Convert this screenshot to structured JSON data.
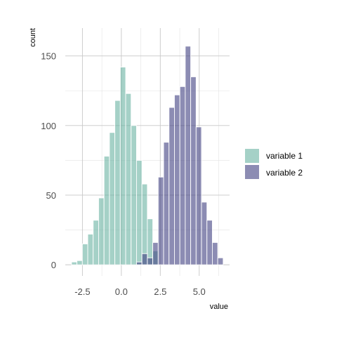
{
  "chart_data": {
    "type": "histogram",
    "title": "",
    "xlabel": "value",
    "ylabel": "count",
    "xlim": [
      -3.6,
      6.95
    ],
    "ylim": [
      -8,
      170
    ],
    "x_ticks": [
      -2.5,
      0.0,
      2.5,
      5.0
    ],
    "x_tick_labels": [
      "-2.5",
      "0.0",
      "2.5",
      "5.0"
    ],
    "y_ticks": [
      0,
      50,
      100,
      150
    ],
    "y_tick_labels": [
      "0",
      "50",
      "100",
      "150"
    ],
    "grid": true,
    "legend_position": "right",
    "bin_width": 0.3478,
    "series": [
      {
        "name": "variable 1",
        "color": "#69b3a2",
        "bins_start": [
          -3.2,
          -2.852,
          -2.504,
          -2.157,
          -1.809,
          -1.461,
          -1.113,
          -0.765,
          -0.417,
          -0.07,
          0.278,
          0.626,
          0.974,
          1.322,
          1.67,
          2.017
        ],
        "counts": [
          2,
          3,
          15,
          22,
          32,
          48,
          78,
          95,
          118,
          142,
          123,
          100,
          75,
          58,
          33,
          10
        ]
      },
      {
        "name": "variable 2",
        "color": "#404080",
        "bins_start": [
          0.974,
          1.322,
          1.67,
          2.017,
          2.365,
          2.713,
          3.061,
          3.409,
          3.757,
          4.104,
          4.452,
          4.8,
          5.148,
          5.496,
          5.843,
          6.191
        ],
        "counts": [
          2,
          8,
          5,
          16,
          63,
          88,
          113,
          122,
          128,
          157,
          135,
          99,
          45,
          32,
          16,
          5
        ]
      }
    ]
  }
}
